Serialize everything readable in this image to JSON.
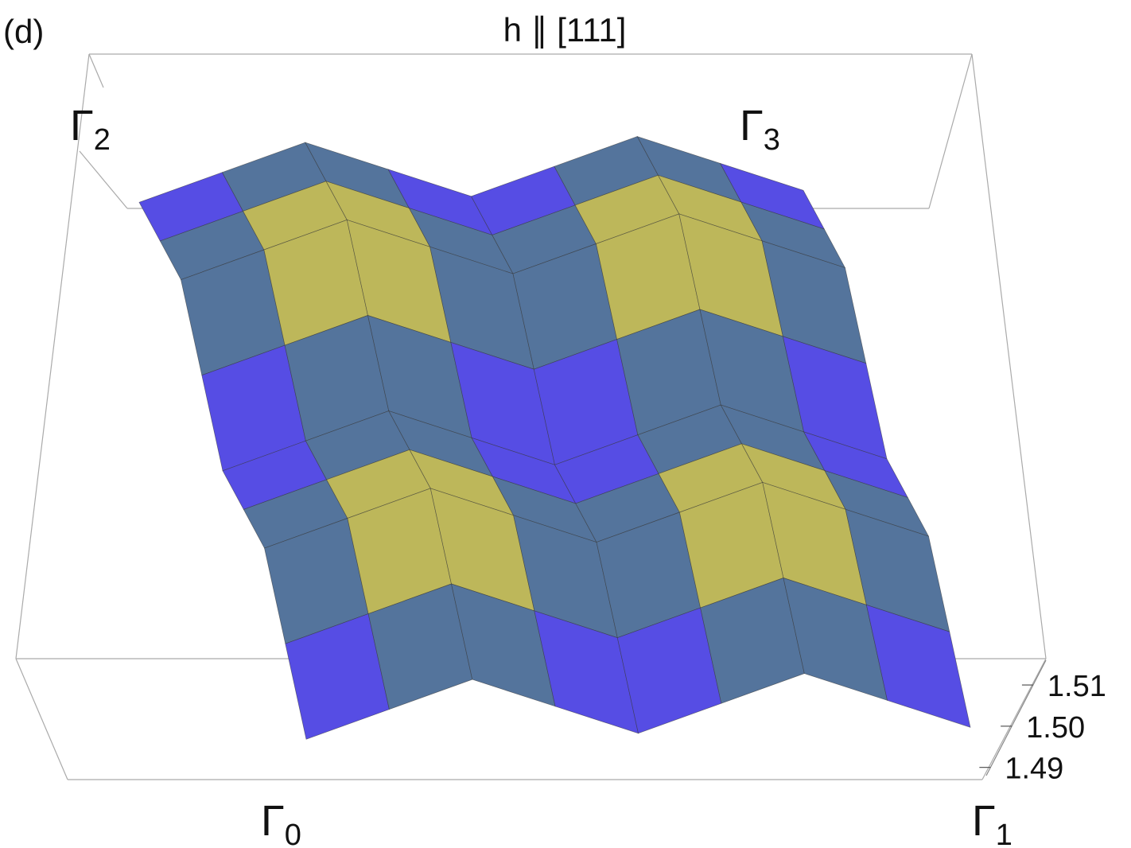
{
  "chart_data": {
    "type": "surface",
    "panel_label": "(d)",
    "title": "h ∥ [111]",
    "corner_labels": [
      {
        "symbol": "Γ",
        "index": "0"
      },
      {
        "symbol": "Γ",
        "index": "1"
      },
      {
        "symbol": "Γ",
        "index": "2"
      },
      {
        "symbol": "Γ",
        "index": "3"
      }
    ],
    "zlim": [
      1.488,
      1.516
    ],
    "zticks": [
      1.49,
      {
        "value": 1.5,
        "label": "1.50"
      },
      1.51
    ],
    "colorscale": [
      "#241c48",
      "#5a3ce0",
      "#4a7ef0",
      "#5e6a48",
      "#ddd060",
      "#e04020"
    ],
    "z": [
      [
        1.492,
        1.496,
        1.5,
        1.496,
        1.492,
        1.496,
        1.5,
        1.496,
        1.492
      ],
      [
        1.496,
        1.5,
        1.504,
        1.5,
        1.496,
        1.5,
        1.504,
        1.5,
        1.496
      ],
      [
        1.5,
        1.504,
        1.508,
        1.504,
        1.5,
        1.504,
        1.508,
        1.504,
        1.5
      ],
      [
        1.496,
        1.5,
        1.504,
        1.5,
        1.496,
        1.5,
        1.504,
        1.5,
        1.496
      ],
      [
        1.492,
        1.496,
        1.5,
        1.496,
        1.492,
        1.496,
        1.5,
        1.496,
        1.492
      ],
      [
        1.496,
        1.5,
        1.504,
        1.5,
        1.496,
        1.5,
        1.504,
        1.5,
        1.496
      ],
      [
        1.5,
        1.504,
        1.508,
        1.504,
        1.5,
        1.504,
        1.508,
        1.504,
        1.5
      ],
      [
        1.496,
        1.5,
        1.504,
        1.5,
        1.496,
        1.5,
        1.504,
        1.5,
        1.496
      ],
      [
        1.492,
        1.496,
        1.5,
        1.496,
        1.492,
        1.496,
        1.5,
        1.496,
        1.492
      ]
    ]
  }
}
